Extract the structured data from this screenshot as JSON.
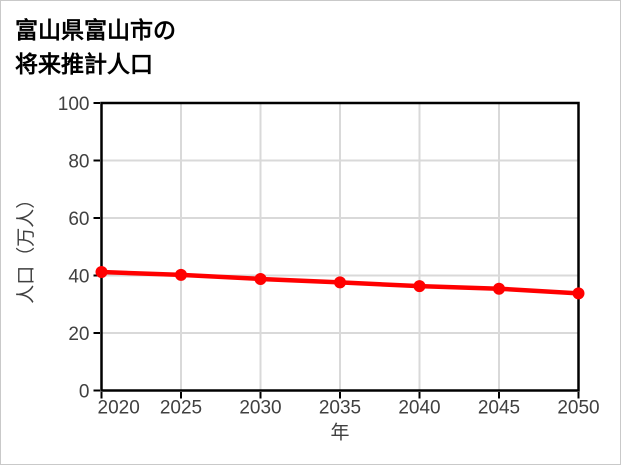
{
  "title": {
    "line1": "富山県富山市の",
    "line2": "将来推計人口"
  },
  "chart_data": {
    "type": "line",
    "title": "富山県富山市の将来推計人口",
    "xlabel": "年",
    "ylabel": "人口（万人）",
    "categories": [
      2020,
      2025,
      2030,
      2035,
      2040,
      2045,
      2050
    ],
    "values": [
      41.2,
      40.2,
      38.8,
      37.6,
      36.3,
      35.4,
      33.8
    ],
    "xlim": [
      2020,
      2050
    ],
    "ylim": [
      0,
      100
    ],
    "xticks": [
      2020,
      2025,
      2030,
      2035,
      2040,
      2045,
      2050
    ],
    "yticks": [
      0,
      20,
      40,
      60,
      80,
      100
    ],
    "grid": true,
    "legend": false,
    "line_color": "#ff0000",
    "marker": "circle",
    "grid_color": "#d9d9d9",
    "axis_color": "#000000",
    "tick_label_color": "#404040",
    "background_color": "#ffffff"
  }
}
